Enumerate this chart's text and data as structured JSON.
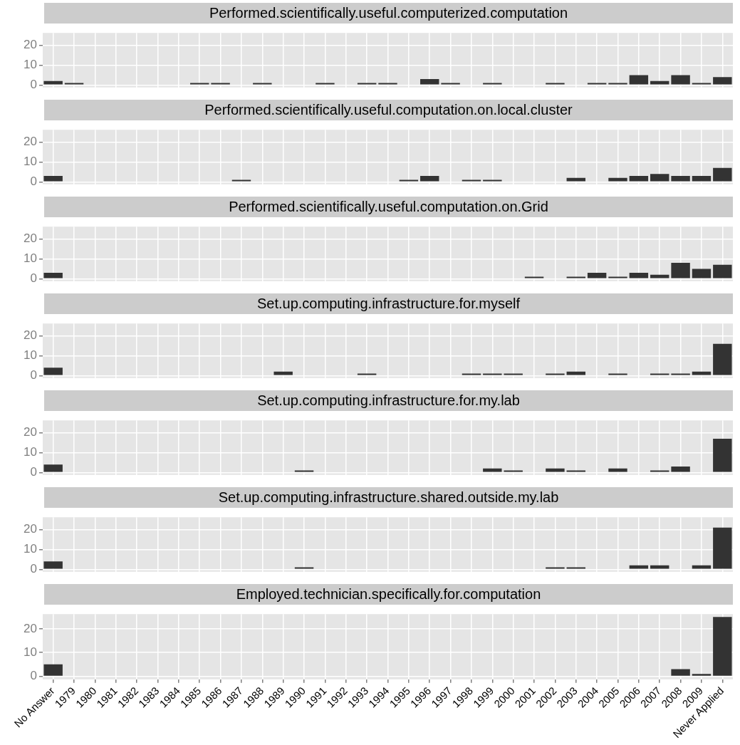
{
  "chart_data": [
    {
      "type": "bar",
      "title": "Performed.scientifically.useful.computerized.computation",
      "categories": [
        null,
        null,
        null,
        null,
        null,
        null,
        null,
        null,
        null,
        null,
        null,
        null,
        null,
        null,
        null,
        null,
        null,
        null,
        null,
        null,
        null,
        null,
        null,
        null,
        null,
        null,
        null,
        null,
        null,
        null,
        null,
        null,
        null
      ],
      "values": [
        2,
        1,
        0,
        0,
        0,
        0,
        0,
        1,
        1,
        0,
        1,
        0,
        0,
        1,
        0,
        1,
        1,
        0,
        3,
        1,
        0,
        1,
        0,
        0,
        1,
        0,
        1,
        1,
        5,
        2,
        5,
        1,
        4
      ],
      "color": "#333333",
      "ylim": [
        -1.25,
        26.25
      ],
      "yticks": [
        0,
        10,
        20
      ],
      "grid": true,
      "tick_labels": "y"
    },
    {
      "type": "bar",
      "title": "Performed.scientifically.useful.computation.on.local.cluster",
      "categories": [
        null,
        null,
        null,
        null,
        null,
        null,
        null,
        null,
        null,
        null,
        null,
        null,
        null,
        null,
        null,
        null,
        null,
        null,
        null,
        null,
        null,
        null,
        null,
        null,
        null,
        null,
        null,
        null,
        null,
        null,
        null,
        null,
        null
      ],
      "values": [
        3,
        0,
        0,
        0,
        0,
        0,
        0,
        0,
        0,
        1,
        0,
        0,
        0,
        0,
        0,
        0,
        0,
        1,
        3,
        0,
        1,
        1,
        0,
        0,
        0,
        2,
        0,
        2,
        3,
        4,
        3,
        3,
        7
      ],
      "color": "#333333",
      "ylim": [
        -1.25,
        26.25
      ],
      "yticks": [
        0,
        10,
        20
      ],
      "grid": true,
      "tick_labels": "y"
    },
    {
      "type": "bar",
      "title": "Performed.scientifically.useful.computation.on.Grid",
      "categories": [
        null,
        null,
        null,
        null,
        null,
        null,
        null,
        null,
        null,
        null,
        null,
        null,
        null,
        null,
        null,
        null,
        null,
        null,
        null,
        null,
        null,
        null,
        null,
        null,
        null,
        null,
        null,
        null,
        null,
        null,
        null,
        null,
        null
      ],
      "values": [
        3,
        0,
        0,
        0,
        0,
        0,
        0,
        0,
        0,
        0,
        0,
        0,
        0,
        0,
        0,
        0,
        0,
        0,
        0,
        0,
        0,
        0,
        0,
        1,
        0,
        1,
        3,
        1,
        3,
        2,
        8,
        5,
        7
      ],
      "color": "#333333",
      "ylim": [
        -1.25,
        26.25
      ],
      "yticks": [
        0,
        10,
        20
      ],
      "grid": true,
      "tick_labels": "y"
    },
    {
      "type": "bar",
      "title": "Set.up.computing.infrastructure.for.myself",
      "categories": [
        null,
        null,
        null,
        null,
        null,
        null,
        null,
        null,
        null,
        null,
        null,
        null,
        null,
        null,
        null,
        null,
        null,
        null,
        null,
        null,
        null,
        null,
        null,
        null,
        null,
        null,
        null,
        null,
        null,
        null,
        null,
        null,
        null
      ],
      "values": [
        4,
        0,
        0,
        0,
        0,
        0,
        0,
        0,
        0,
        0,
        0,
        2,
        0,
        0,
        0,
        1,
        0,
        0,
        0,
        0,
        1,
        1,
        1,
        0,
        1,
        2,
        0,
        1,
        0,
        1,
        1,
        2,
        16
      ],
      "color": "#333333",
      "ylim": [
        -1.25,
        26.25
      ],
      "yticks": [
        0,
        10,
        20
      ],
      "grid": true,
      "tick_labels": "y"
    },
    {
      "type": "bar",
      "title": "Set.up.computing.infrastructure.for.my.lab",
      "categories": [
        null,
        null,
        null,
        null,
        null,
        null,
        null,
        null,
        null,
        null,
        null,
        null,
        null,
        null,
        null,
        null,
        null,
        null,
        null,
        null,
        null,
        null,
        null,
        null,
        null,
        null,
        null,
        null,
        null,
        null,
        null,
        null,
        null
      ],
      "values": [
        4,
        0,
        0,
        0,
        0,
        0,
        0,
        0,
        0,
        0,
        0,
        0,
        1,
        0,
        0,
        0,
        0,
        0,
        0,
        0,
        0,
        2,
        1,
        0,
        2,
        1,
        0,
        2,
        0,
        1,
        3,
        0,
        17
      ],
      "color": "#333333",
      "ylim": [
        -1.25,
        26.25
      ],
      "yticks": [
        0,
        10,
        20
      ],
      "grid": true,
      "tick_labels": "y"
    },
    {
      "type": "bar",
      "title": "Set.up.computing.infrastructure.shared.outside.my.lab",
      "categories": [
        null,
        null,
        null,
        null,
        null,
        null,
        null,
        null,
        null,
        null,
        null,
        null,
        null,
        null,
        null,
        null,
        null,
        null,
        null,
        null,
        null,
        null,
        null,
        null,
        null,
        null,
        null,
        null,
        null,
        null,
        null,
        null,
        null
      ],
      "values": [
        4,
        0,
        0,
        0,
        0,
        0,
        0,
        0,
        0,
        0,
        0,
        0,
        1,
        0,
        0,
        0,
        0,
        0,
        0,
        0,
        0,
        0,
        0,
        0,
        1,
        1,
        0,
        0,
        2,
        2,
        0,
        2,
        21
      ],
      "color": "#333333",
      "ylim": [
        -1.25,
        26.25
      ],
      "yticks": [
        0,
        10,
        20
      ],
      "grid": true,
      "tick_labels": "y"
    },
    {
      "type": "bar",
      "title": "Employed.technician.specifically.for.computation",
      "categories": [
        "No Answer",
        "1979",
        "1980",
        "1981",
        "1982",
        "1983",
        "1984",
        "1985",
        "1986",
        "1987",
        "1988",
        "1989",
        "1990",
        "1991",
        "1992",
        "1993",
        "1994",
        "1995",
        "1996",
        "1997",
        "1998",
        "1999",
        "2000",
        "2001",
        "2002",
        "2003",
        "2004",
        "2005",
        "2006",
        "2007",
        "2008",
        "2009",
        "Never Applied"
      ],
      "values": [
        5,
        0,
        0,
        0,
        0,
        0,
        0,
        0,
        0,
        0,
        0,
        0,
        0,
        0,
        0,
        0,
        0,
        0,
        0,
        0,
        0,
        0,
        0,
        0,
        0,
        0,
        0,
        0,
        0,
        0,
        3,
        1,
        25
      ],
      "color": "#333333",
      "ylim": [
        -1.25,
        26.25
      ],
      "yticks": [
        0,
        10,
        20
      ],
      "grid": true
    }
  ]
}
